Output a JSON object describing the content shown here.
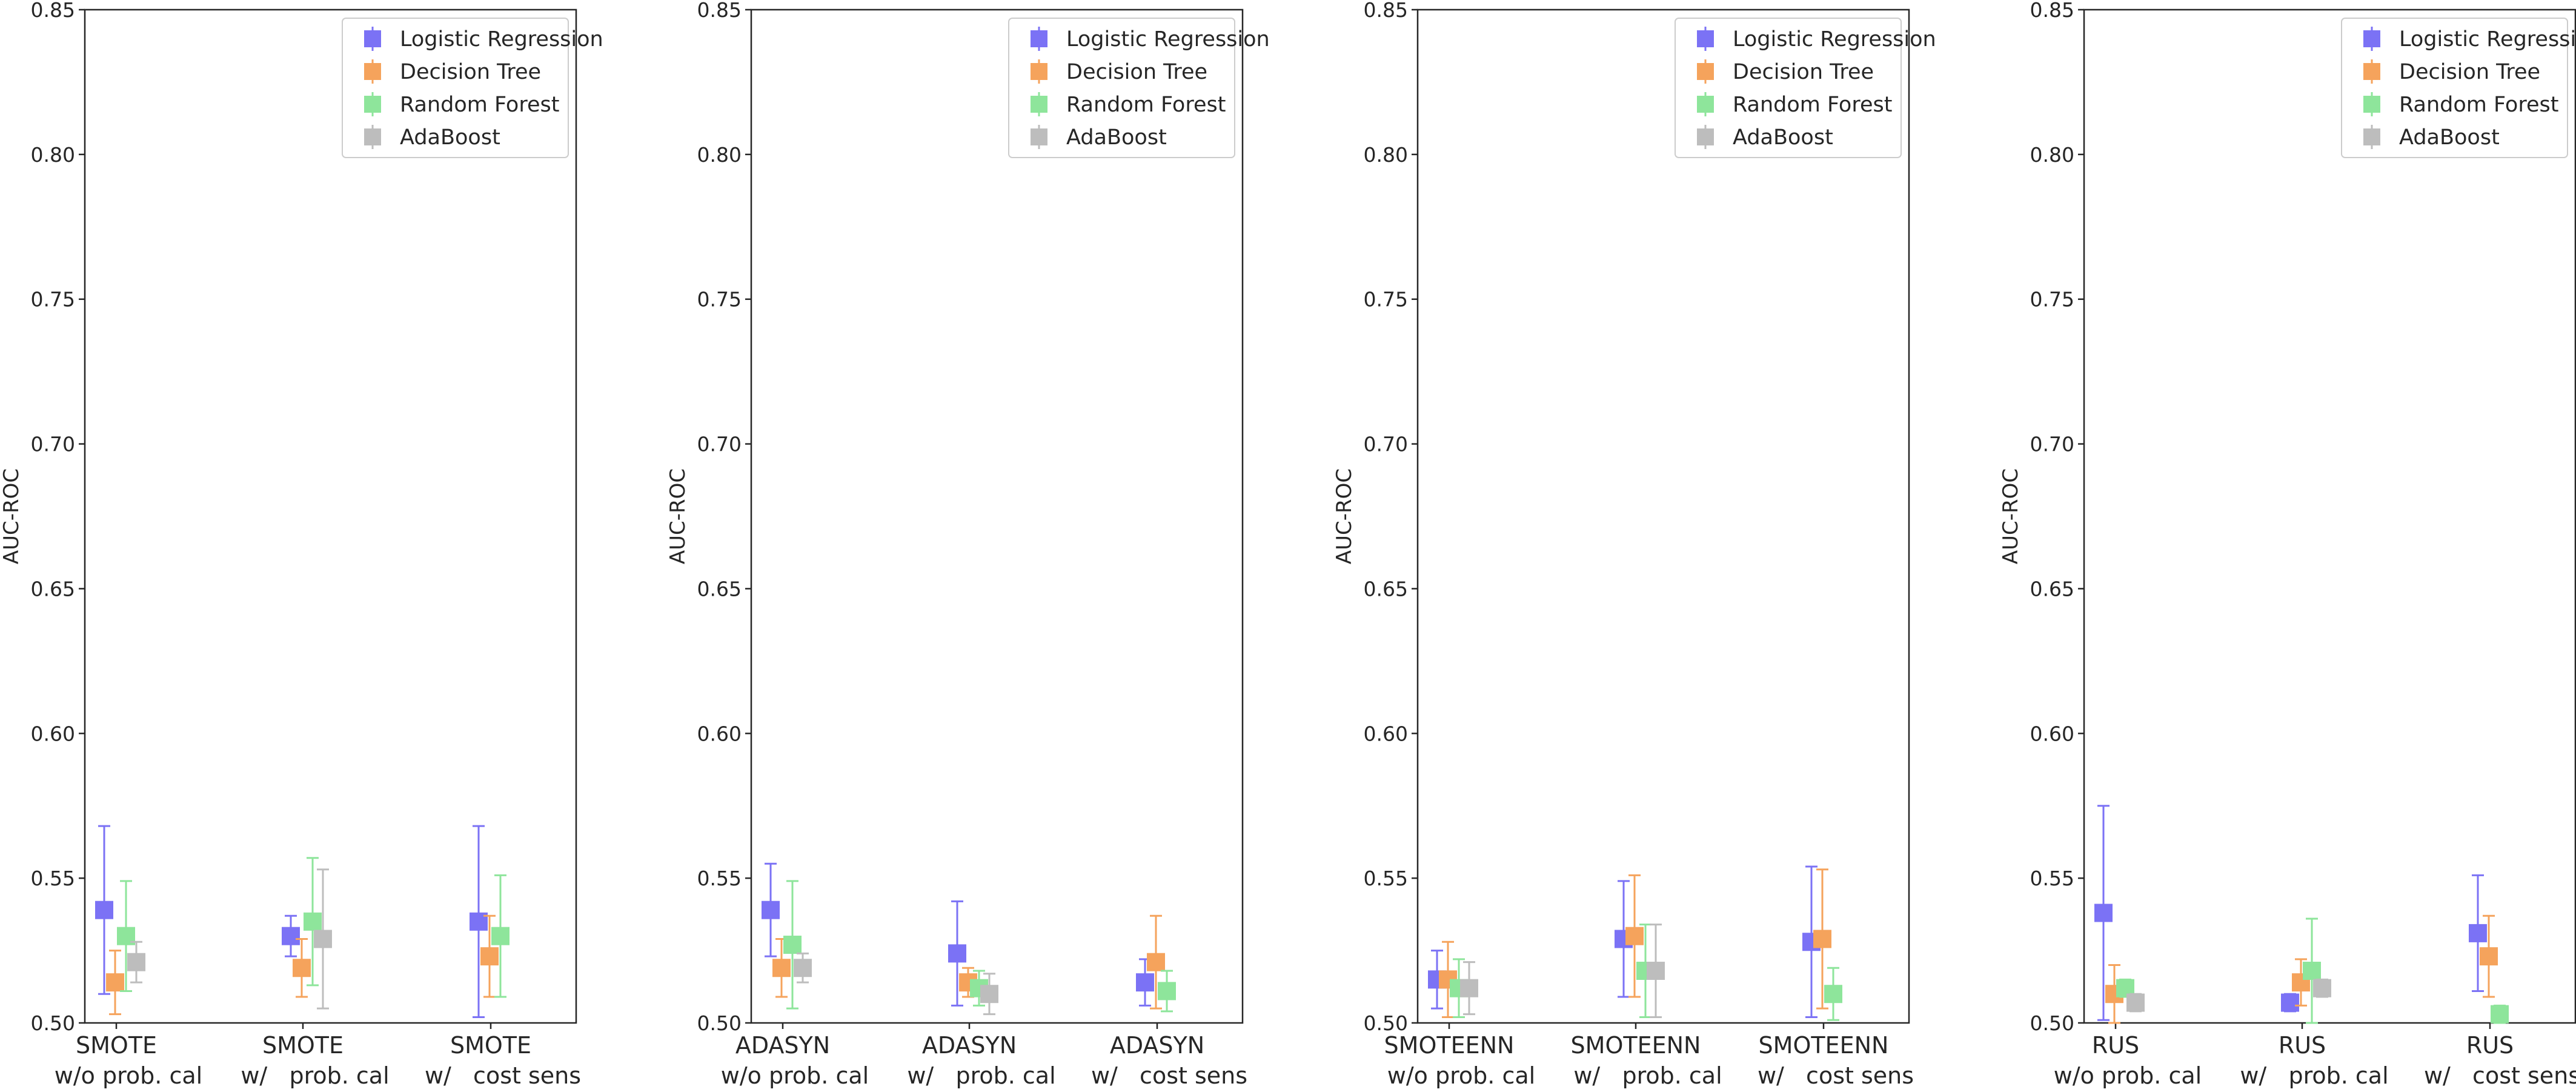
{
  "colors": {
    "Logistic Regression": "#7b72f5",
    "Decision Tree": "#f5a35c",
    "Random Forest": "#8ee59b",
    "AdaBoost": "#bdbdbd"
  },
  "chart_data": [
    {
      "type": "scatter",
      "ylabel": "AUC-ROC",
      "ylim": [
        0.5,
        0.85
      ],
      "yticks": [
        "0.50",
        "0.55",
        "0.60",
        "0.65",
        "0.70",
        "0.75",
        "0.80",
        "0.85"
      ],
      "legend_position": "top-right",
      "categories": [
        {
          "line1": "SMOTE",
          "line2": "w/o prob. cal"
        },
        {
          "line1": "SMOTE",
          "line2": "w/   prob. cal"
        },
        {
          "line1": "SMOTE",
          "line2": "w/   cost sens"
        }
      ],
      "series": [
        {
          "name": "Logistic Regression",
          "values": [
            0.539,
            0.53,
            0.535
          ],
          "errors": [
            0.029,
            0.007,
            0.033
          ]
        },
        {
          "name": "Decision Tree",
          "values": [
            0.514,
            0.519,
            0.523
          ],
          "errors": [
            0.011,
            0.01,
            0.014
          ]
        },
        {
          "name": "Random Forest",
          "values": [
            0.53,
            0.535,
            0.53
          ],
          "errors": [
            0.019,
            0.022,
            0.021
          ]
        },
        {
          "name": "AdaBoost",
          "values": [
            0.521,
            0.529,
            null
          ],
          "errors": [
            0.007,
            0.024,
            null
          ]
        }
      ]
    },
    {
      "type": "scatter",
      "ylabel": "AUC-ROC",
      "ylim": [
        0.5,
        0.85
      ],
      "yticks": [
        "0.50",
        "0.55",
        "0.60",
        "0.65",
        "0.70",
        "0.75",
        "0.80",
        "0.85"
      ],
      "legend_position": "top-right",
      "categories": [
        {
          "line1": "ADASYN",
          "line2": "w/o prob. cal"
        },
        {
          "line1": "ADASYN",
          "line2": "w/   prob. cal"
        },
        {
          "line1": "ADASYN",
          "line2": "w/   cost sens"
        }
      ],
      "series": [
        {
          "name": "Logistic Regression",
          "values": [
            0.539,
            0.524,
            0.514
          ],
          "errors": [
            0.016,
            0.018,
            0.008
          ]
        },
        {
          "name": "Decision Tree",
          "values": [
            0.519,
            0.514,
            0.521
          ],
          "errors": [
            0.01,
            0.005,
            0.016
          ]
        },
        {
          "name": "Random Forest",
          "values": [
            0.527,
            0.512,
            0.511
          ],
          "errors": [
            0.022,
            0.006,
            0.007
          ]
        },
        {
          "name": "AdaBoost",
          "values": [
            0.519,
            0.51,
            null
          ],
          "errors": [
            0.005,
            0.007,
            null
          ]
        }
      ]
    },
    {
      "type": "scatter",
      "ylabel": "AUC-ROC",
      "ylim": [
        0.5,
        0.85
      ],
      "yticks": [
        "0.50",
        "0.55",
        "0.60",
        "0.65",
        "0.70",
        "0.75",
        "0.80",
        "0.85"
      ],
      "legend_position": "top-right",
      "categories": [
        {
          "line1": "SMOTEENN",
          "line2": "w/o prob. cal"
        },
        {
          "line1": "SMOTEENN",
          "line2": "w/   prob. cal"
        },
        {
          "line1": "SMOTEENN",
          "line2": "w/   cost sens"
        }
      ],
      "series": [
        {
          "name": "Logistic Regression",
          "values": [
            0.515,
            0.529,
            0.528
          ],
          "errors": [
            0.01,
            0.02,
            0.026
          ]
        },
        {
          "name": "Decision Tree",
          "values": [
            0.515,
            0.53,
            0.529
          ],
          "errors": [
            0.013,
            0.021,
            0.024
          ]
        },
        {
          "name": "Random Forest",
          "values": [
            0.512,
            0.518,
            0.51
          ],
          "errors": [
            0.01,
            0.016,
            0.009
          ]
        },
        {
          "name": "AdaBoost",
          "values": [
            0.512,
            0.518,
            null
          ],
          "errors": [
            0.009,
            0.016,
            null
          ]
        }
      ]
    },
    {
      "type": "scatter",
      "ylabel": "AUC-ROC",
      "ylim": [
        0.5,
        0.85
      ],
      "yticks": [
        "0.50",
        "0.55",
        "0.60",
        "0.65",
        "0.70",
        "0.75",
        "0.80",
        "0.85"
      ],
      "legend_position": "top-right",
      "categories": [
        {
          "line1": "RUS",
          "line2": "w/o prob. cal"
        },
        {
          "line1": "RUS",
          "line2": "w/   prob. cal"
        },
        {
          "line1": "RUS",
          "line2": "w/   cost sens"
        }
      ],
      "series": [
        {
          "name": "Logistic Regression",
          "values": [
            0.538,
            0.507,
            0.531
          ],
          "errors": [
            0.037,
            0.003,
            0.02
          ]
        },
        {
          "name": "Decision Tree",
          "values": [
            0.51,
            0.514,
            0.523
          ],
          "errors": [
            0.01,
            0.008,
            0.014
          ]
        },
        {
          "name": "Random Forest",
          "values": [
            0.512,
            0.518,
            0.503
          ],
          "errors": [
            0.003,
            0.018,
            0.003
          ]
        },
        {
          "name": "AdaBoost",
          "values": [
            0.507,
            0.512,
            null
          ],
          "errors": [
            0.003,
            0.003,
            null
          ]
        }
      ]
    }
  ]
}
